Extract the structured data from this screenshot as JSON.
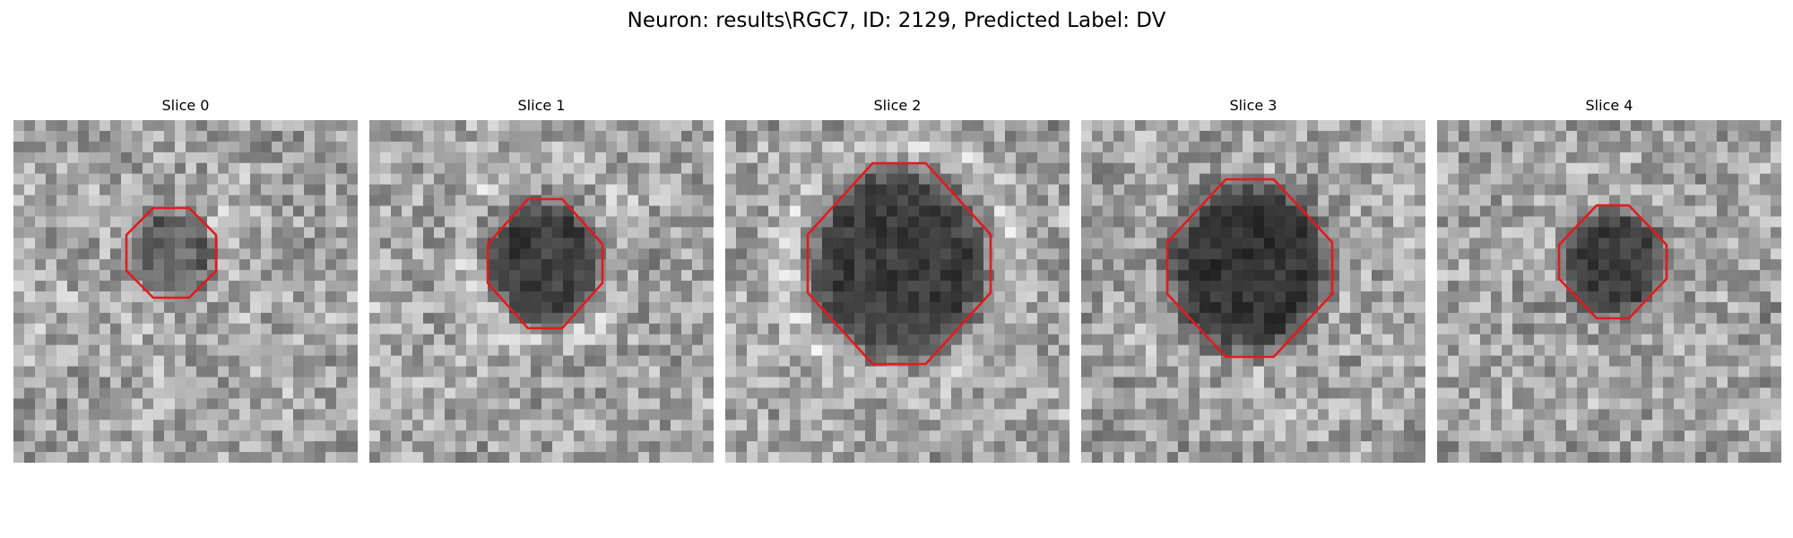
{
  "figure": {
    "title": "Neuron: results\\RGC7, ID: 2129, Predicted Label: DV"
  },
  "panels": [
    {
      "title": "Slice 0",
      "contour_color": "#e31a1c"
    },
    {
      "title": "Slice 1",
      "contour_color": "#e31a1c"
    },
    {
      "title": "Slice 2",
      "contour_color": "#e31a1c"
    },
    {
      "title": "Slice 3",
      "contour_color": "#e31a1c"
    },
    {
      "title": "Slice 4",
      "contour_color": "#e31a1c"
    }
  ]
}
